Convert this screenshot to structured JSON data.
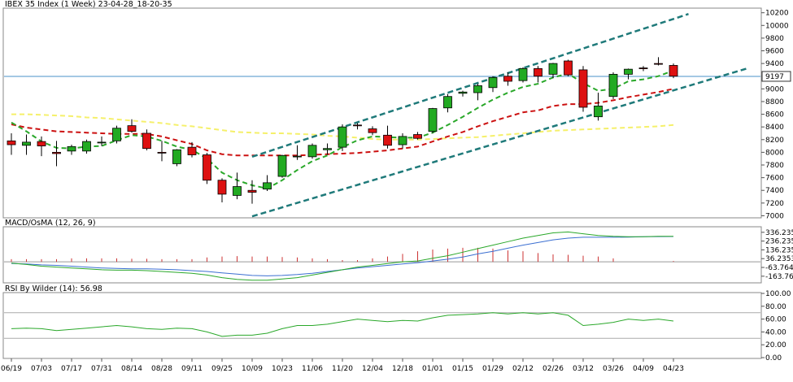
{
  "chart_data": [
    {
      "type": "candlestick",
      "title": "IBEX 35 Index (1 Week) 23-04-28_18-20-35",
      "price_levels": [
        "10200",
        "10000",
        "9800",
        "9600",
        "9400",
        "9200",
        "9000",
        "8800",
        "8600",
        "8400",
        "8200",
        "8000",
        "7800",
        "7600",
        "7400",
        "7200",
        "7000"
      ],
      "ylim": [
        6980,
        10260
      ],
      "last_price_label": "9197",
      "last_price": 9197,
      "colors": {
        "up": "#22aa22",
        "down": "#dd1111",
        "grid": "#c8c8c8",
        "last_line": "#4a90c8",
        "channel": "#1f7a7a",
        "fast_ma": "#2aa82a",
        "mid_ma": "#cc1111",
        "slow_ma": "#f5f06a"
      },
      "candles": [
        {
          "o": 8180,
          "h": 8300,
          "l": 7960,
          "c": 8120
        },
        {
          "o": 8110,
          "h": 8280,
          "l": 7960,
          "c": 8160
        },
        {
          "o": 8170,
          "h": 8250,
          "l": 7940,
          "c": 8100
        },
        {
          "o": 8000,
          "h": 8180,
          "l": 7780,
          "c": 7980
        },
        {
          "o": 8020,
          "h": 8120,
          "l": 7960,
          "c": 8090
        },
        {
          "o": 8020,
          "h": 8200,
          "l": 7980,
          "c": 8170
        },
        {
          "o": 8150,
          "h": 8250,
          "l": 8100,
          "c": 8160
        },
        {
          "o": 8180,
          "h": 8420,
          "l": 8140,
          "c": 8380
        },
        {
          "o": 8420,
          "h": 8520,
          "l": 8310,
          "c": 8330
        },
        {
          "o": 8300,
          "h": 8360,
          "l": 8030,
          "c": 8060
        },
        {
          "o": 8000,
          "h": 8180,
          "l": 7860,
          "c": 7990
        },
        {
          "o": 7820,
          "h": 8050,
          "l": 7780,
          "c": 8040
        },
        {
          "o": 8080,
          "h": 8160,
          "l": 7920,
          "c": 7960
        },
        {
          "o": 7960,
          "h": 7990,
          "l": 7500,
          "c": 7560
        },
        {
          "o": 7560,
          "h": 7590,
          "l": 7210,
          "c": 7340
        },
        {
          "o": 7320,
          "h": 7680,
          "l": 7260,
          "c": 7460
        },
        {
          "o": 7400,
          "h": 7560,
          "l": 7190,
          "c": 7370
        },
        {
          "o": 7420,
          "h": 7640,
          "l": 7390,
          "c": 7520
        },
        {
          "o": 7620,
          "h": 7960,
          "l": 7600,
          "c": 7950
        },
        {
          "o": 7930,
          "h": 8110,
          "l": 7880,
          "c": 7940
        },
        {
          "o": 7930,
          "h": 8140,
          "l": 7900,
          "c": 8110
        },
        {
          "o": 8040,
          "h": 8140,
          "l": 7960,
          "c": 8060
        },
        {
          "o": 8080,
          "h": 8440,
          "l": 8020,
          "c": 8400
        },
        {
          "o": 8430,
          "h": 8460,
          "l": 8360,
          "c": 8420
        },
        {
          "o": 8370,
          "h": 8410,
          "l": 8270,
          "c": 8310
        },
        {
          "o": 8270,
          "h": 8420,
          "l": 8060,
          "c": 8110
        },
        {
          "o": 8120,
          "h": 8300,
          "l": 8060,
          "c": 8250
        },
        {
          "o": 8280,
          "h": 8320,
          "l": 8200,
          "c": 8220
        },
        {
          "o": 8330,
          "h": 8700,
          "l": 8300,
          "c": 8690
        },
        {
          "o": 8700,
          "h": 8920,
          "l": 8630,
          "c": 8880
        },
        {
          "o": 8930,
          "h": 8970,
          "l": 8880,
          "c": 8950
        },
        {
          "o": 8940,
          "h": 9080,
          "l": 8820,
          "c": 9050
        },
        {
          "o": 9020,
          "h": 9200,
          "l": 8950,
          "c": 9180
        },
        {
          "o": 9200,
          "h": 9260,
          "l": 9050,
          "c": 9120
        },
        {
          "o": 9130,
          "h": 9340,
          "l": 9100,
          "c": 9320
        },
        {
          "o": 9320,
          "h": 9360,
          "l": 9100,
          "c": 9200
        },
        {
          "o": 9230,
          "h": 9410,
          "l": 9170,
          "c": 9400
        },
        {
          "o": 9440,
          "h": 9460,
          "l": 9200,
          "c": 9220
        },
        {
          "o": 9300,
          "h": 9360,
          "l": 8640,
          "c": 8710
        },
        {
          "o": 8560,
          "h": 8940,
          "l": 8500,
          "c": 8730
        },
        {
          "o": 8880,
          "h": 9260,
          "l": 8840,
          "c": 9230
        },
        {
          "o": 9230,
          "h": 9320,
          "l": 9150,
          "c": 9310
        },
        {
          "o": 9330,
          "h": 9360,
          "l": 9280,
          "c": 9320
        },
        {
          "o": 9400,
          "h": 9500,
          "l": 9370,
          "c": 9390
        },
        {
          "o": 9370,
          "h": 9400,
          "l": 9170,
          "c": 9200
        }
      ],
      "fast_ma": [
        8470,
        8330,
        8170,
        8070,
        8060,
        8090,
        8100,
        8190,
        8270,
        8250,
        8180,
        8090,
        8040,
        7900,
        7680,
        7560,
        7480,
        7430,
        7560,
        7720,
        7860,
        7950,
        8080,
        8190,
        8250,
        8240,
        8230,
        8230,
        8310,
        8430,
        8560,
        8700,
        8830,
        8940,
        9030,
        9080,
        9180,
        9240,
        9090,
        8970,
        9000,
        9120,
        9150,
        9200,
        9290
      ],
      "mid_ma": [
        8440,
        8390,
        8360,
        8330,
        8320,
        8310,
        8300,
        8290,
        8290,
        8290,
        8250,
        8190,
        8130,
        8030,
        7970,
        7950,
        7950,
        7950,
        7950,
        7950,
        7960,
        7970,
        7980,
        7990,
        8010,
        8030,
        8060,
        8090,
        8170,
        8250,
        8320,
        8410,
        8490,
        8560,
        8630,
        8660,
        8730,
        8760,
        8760,
        8780,
        8820,
        8870,
        8910,
        8950,
        9000
      ],
      "slow_ma": [
        8600,
        8600,
        8590,
        8580,
        8570,
        8550,
        8540,
        8520,
        8500,
        8480,
        8460,
        8430,
        8410,
        8380,
        8350,
        8320,
        8310,
        8300,
        8300,
        8290,
        8280,
        8260,
        8250,
        8230,
        8210,
        8200,
        8200,
        8200,
        8210,
        8220,
        8230,
        8240,
        8260,
        8280,
        8300,
        8320,
        8340,
        8350,
        8360,
        8370,
        8380,
        8390,
        8400,
        8410,
        8430
      ],
      "channel_upper": [
        [
          16,
          7930
        ],
        [
          45,
          10180
        ]
      ],
      "channel_lower": [
        [
          16,
          6990
        ],
        [
          49,
          9330
        ]
      ]
    },
    {
      "type": "line",
      "title": "MACD/OsMA (12, 26, 9)",
      "levels": [
        "336.2353",
        "236.2353",
        "136.2353",
        "36.23534",
        "-63.7646",
        "-163.764"
      ],
      "ylim": [
        -230,
        390
      ],
      "macd": [
        -15,
        -30,
        -50,
        -60,
        -70,
        -80,
        -90,
        -95,
        -95,
        -100,
        -110,
        -120,
        -130,
        -150,
        -180,
        -200,
        -210,
        -210,
        -195,
        -180,
        -150,
        -120,
        -90,
        -60,
        -40,
        -20,
        0,
        10,
        40,
        70,
        110,
        150,
        190,
        230,
        270,
        300,
        330,
        340,
        320,
        300,
        290,
        285,
        285,
        290,
        290
      ],
      "signal": [
        -20,
        -25,
        -35,
        -40,
        -50,
        -60,
        -70,
        -75,
        -80,
        -80,
        -85,
        -90,
        -100,
        -110,
        -125,
        -140,
        -155,
        -160,
        -155,
        -145,
        -130,
        -110,
        -90,
        -70,
        -55,
        -40,
        -25,
        -10,
        10,
        30,
        55,
        90,
        120,
        155,
        190,
        220,
        250,
        270,
        280,
        280,
        280,
        282,
        285,
        287,
        288
      ],
      "histogram": [
        30,
        30,
        30,
        30,
        40,
        40,
        40,
        40,
        35,
        35,
        30,
        30,
        30,
        50,
        60,
        65,
        60,
        60,
        55,
        50,
        40,
        30,
        20,
        20,
        40,
        60,
        90,
        120,
        140,
        150,
        160,
        160,
        150,
        130,
        120,
        100,
        85,
        80,
        70,
        60,
        40,
        0,
        0,
        0,
        10
      ]
    },
    {
      "type": "line",
      "title": "RSI By Wilder (14): 56.98",
      "levels": [
        "100.00",
        "80.00",
        "60.00",
        "40.00",
        "20.00",
        "0.00"
      ],
      "ylim": [
        0,
        100
      ],
      "rsi": [
        45,
        46,
        45,
        42,
        44,
        46,
        48,
        50,
        48,
        45,
        44,
        46,
        45,
        40,
        33,
        35,
        35,
        38,
        45,
        50,
        50,
        52,
        56,
        60,
        58,
        56,
        58,
        57,
        62,
        66,
        67,
        68,
        70,
        68,
        70,
        68,
        70,
        66,
        50,
        52,
        55,
        60,
        58,
        60,
        56.98
      ]
    }
  ],
  "x_axis": {
    "dates": [
      "06/19",
      "07/03",
      "07/17",
      "07/31",
      "08/14",
      "08/28",
      "09/11",
      "09/25",
      "10/09",
      "10/23",
      "11/06",
      "11/20",
      "12/04",
      "12/18",
      "01/01",
      "01/15",
      "01/29",
      "02/12",
      "02/26",
      "03/12",
      "03/26",
      "04/09",
      "04/23"
    ]
  }
}
